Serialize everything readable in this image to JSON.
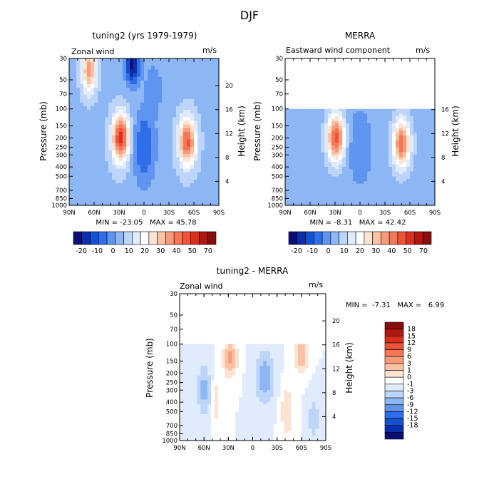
{
  "title": "DJF",
  "colors": {
    "blue_ramp": [
      "#0d0d7a",
      "#0c2ea8",
      "#1450d2",
      "#2f6ee8",
      "#5f94f0",
      "#8db6f5",
      "#bcd5f9",
      "#e0ecfc"
    ],
    "red_ramp": [
      "#fde3d3",
      "#fbc1a3",
      "#f89a7a",
      "#f47758",
      "#ee5338",
      "#d9301e",
      "#b3150f",
      "#8a0d0d"
    ],
    "neutral": "#ffffff"
  },
  "chart_data": [
    {
      "type": "heatmap",
      "panel": "model",
      "title": "tuning2 (yrs 1979-1979)",
      "left_label": "Zonal wind",
      "right_label": "m/s",
      "ylabel": "Pressure (mb)",
      "ylabel_right": "Height (km)",
      "pressure_ticks": [
        30,
        50,
        70,
        100,
        150,
        200,
        250,
        300,
        400,
        500,
        700,
        850,
        1000
      ],
      "height_ticks": [
        20,
        16,
        12,
        8,
        4
      ],
      "x_ticks": [
        "90N",
        "60N",
        "30N",
        "0",
        "30S",
        "60S",
        "90S"
      ],
      "x_ticks_values": [
        90,
        60,
        30,
        0,
        -30,
        -60,
        -90
      ],
      "ylim_mb": [
        1000,
        30
      ],
      "data_top_mb": 30,
      "stats": {
        "min": -23.05,
        "max": 45.78
      },
      "stats_text": "MIN = -23.05   MAX = 45.78",
      "colorbar_levels": [
        "-20",
        "-10",
        "0",
        "10",
        "20",
        "30",
        "40",
        "50",
        "70"
      ],
      "features": [
        {
          "kind": "jet",
          "lat": 28,
          "mb": 200,
          "value": 42
        },
        {
          "kind": "jet",
          "lat": -52,
          "mb": 220,
          "value": 38
        },
        {
          "kind": "easterly",
          "lat": 14,
          "mb": 35,
          "value": -23
        },
        {
          "kind": "westerly",
          "lat": 65,
          "mb": 40,
          "value": 30
        }
      ]
    },
    {
      "type": "heatmap",
      "panel": "obs",
      "title": "MERRA",
      "left_label": "Eastward wind component",
      "right_label": "m/s",
      "ylabel": "Pressure (mb)",
      "ylabel_right": "Height (km)",
      "pressure_ticks": [
        30,
        50,
        70,
        100,
        150,
        200,
        250,
        300,
        400,
        500,
        700,
        850,
        1000
      ],
      "height_ticks": [
        16,
        12,
        8,
        4
      ],
      "x_ticks": [
        "90N",
        "60N",
        "30N",
        "0",
        "30S",
        "60S",
        "90S"
      ],
      "x_ticks_values": [
        90,
        60,
        30,
        0,
        -30,
        -60,
        -90
      ],
      "ylim_mb": [
        1000,
        30
      ],
      "data_top_mb": 100,
      "stats": {
        "min": -8.31,
        "max": 42.42
      },
      "stats_text": "MIN = -8.31   MAX = 42.42",
      "colorbar_levels": [
        "-20",
        "-10",
        "0",
        "10",
        "20",
        "30",
        "40",
        "50",
        "70"
      ],
      "features": [
        {
          "kind": "jet",
          "lat": 29,
          "mb": 200,
          "value": 38
        },
        {
          "kind": "jet",
          "lat": -50,
          "mb": 230,
          "value": 36
        }
      ]
    },
    {
      "type": "heatmap",
      "panel": "diff",
      "title": "tuning2 - MERRA",
      "left_label": "Zonal wind",
      "right_label": "m/s",
      "ylabel": "Pressure (mb)",
      "ylabel_right": "Height (km)",
      "pressure_ticks": [
        30,
        50,
        70,
        100,
        150,
        200,
        250,
        300,
        400,
        500,
        700,
        850,
        1000
      ],
      "height_ticks": [
        20,
        16,
        12,
        8,
        4
      ],
      "x_ticks": [
        "90N",
        "60N",
        "30N",
        "0",
        "30S",
        "60S",
        "90S"
      ],
      "x_ticks_values": [
        90,
        60,
        30,
        0,
        -30,
        -60,
        -90
      ],
      "ylim_mb": [
        1000,
        30
      ],
      "data_top_mb": 100,
      "stats": {
        "min": -7.31,
        "max": 6.99
      },
      "stats_text": "MIN =  -7.31   MAX =   6.99",
      "colorbar_levels": [
        "18",
        "15",
        "12",
        "9",
        "6",
        "3",
        "1",
        "0",
        "-1",
        "-3",
        "-6",
        "-9",
        "-12",
        "-15",
        "-18"
      ],
      "features": [
        {
          "kind": "diff",
          "lat": 28,
          "mb": 130,
          "value": 7
        },
        {
          "kind": "diff",
          "lat": -60,
          "mb": 120,
          "value": 6
        },
        {
          "kind": "diff",
          "lat": -15,
          "mb": 200,
          "value": -5
        }
      ]
    }
  ]
}
